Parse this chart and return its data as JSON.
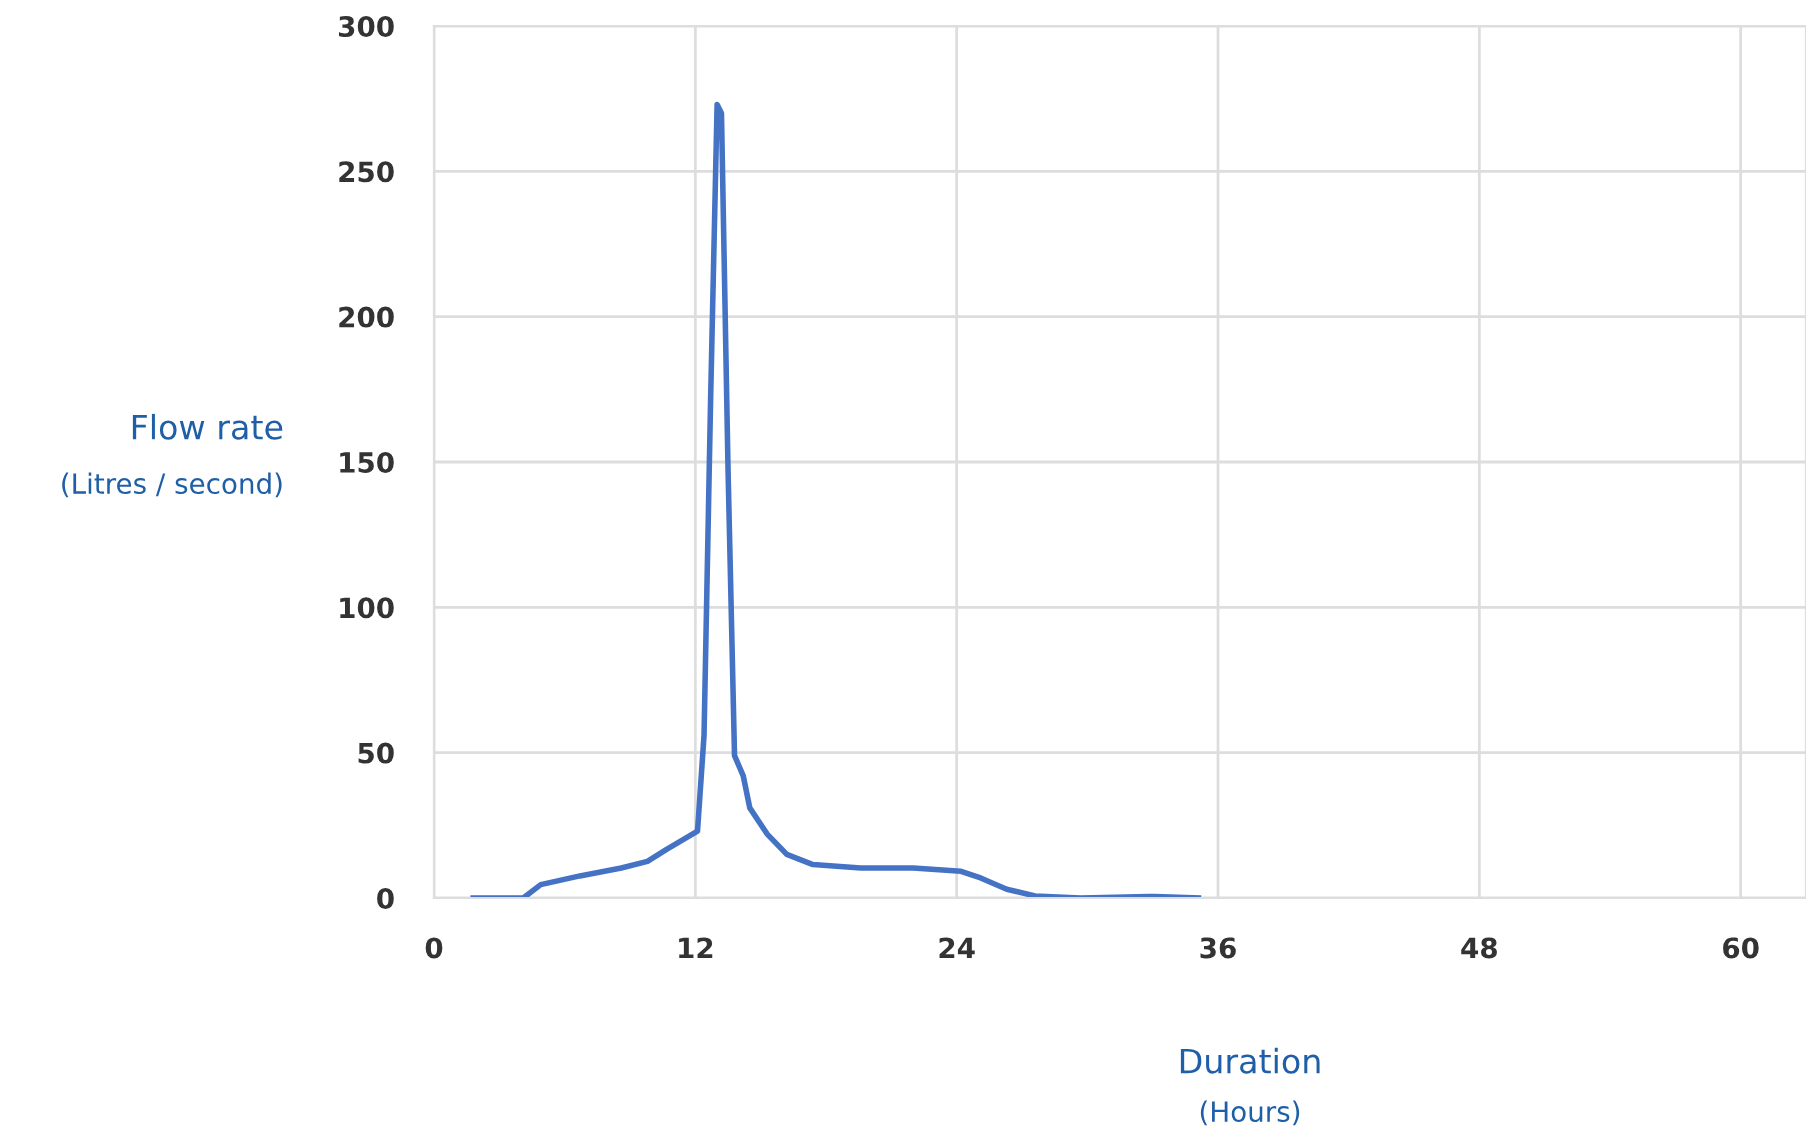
{
  "chart_data": {
    "type": "line",
    "xlabel": "Duration\n(Hours)",
    "ylabel": "Flow rate\n(Litres / second)",
    "x": [
      1.8,
      4.1,
      4.9,
      6.7,
      8.6,
      9.8,
      10.7,
      12.1,
      12.4,
      12.7,
      13.0,
      13.2,
      13.5,
      13.8,
      14.2,
      14.5,
      15.3,
      16.2,
      17.4,
      19.6,
      22.0,
      24.2,
      25.1,
      26.3,
      27.6,
      29.7,
      32.8,
      33.1,
      35.1
    ],
    "series": [
      {
        "color": "#4472c4",
        "values": [
          0,
          0,
          4.6,
          7.6,
          10.3,
          12.6,
          16.8,
          23,
          56,
          171,
          273,
          270,
          148,
          49,
          42,
          31,
          22,
          15,
          11.5,
          10.3,
          10.3,
          9.2,
          6.9,
          3,
          0.7,
          0,
          0.5,
          0.5,
          0
        ]
      }
    ],
    "xlim": [
      0,
      63
    ],
    "xticks": [
      0,
      12,
      24,
      36,
      48,
      60
    ],
    "ylim": [
      0,
      300
    ],
    "yticks": [
      0,
      50,
      100,
      150,
      200,
      250,
      300
    ],
    "grid": true,
    "marker": "none",
    "line_style": "solid"
  }
}
